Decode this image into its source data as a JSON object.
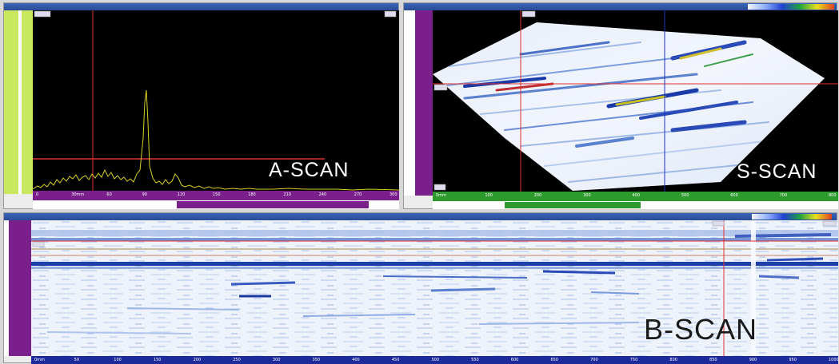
{
  "ascan": {
    "label": "A-SCAN",
    "ticks": [
      "0",
      "30mm",
      "60",
      "90",
      "120",
      "150",
      "180",
      "210",
      "240",
      "270",
      "300"
    ]
  },
  "sscan": {
    "label": "S-SCAN",
    "ticks": [
      "0mm",
      "100",
      "200",
      "300",
      "400",
      "500",
      "600",
      "700",
      "800"
    ]
  },
  "bscan": {
    "label": "B-SCAN",
    "ticks": [
      "0mm",
      "50",
      "100",
      "150",
      "200",
      "250",
      "300",
      "350",
      "400",
      "450",
      "500",
      "550",
      "600",
      "650",
      "700",
      "750",
      "800",
      "850",
      "900",
      "950",
      "1000"
    ]
  },
  "colors": {
    "accent_purple": "#7a1f8c",
    "accent_green": "#2c9a2c",
    "trace_yellow": "#d8d020",
    "cursor_red": "#e03030",
    "bscan_axis": "#1c2a9a"
  }
}
